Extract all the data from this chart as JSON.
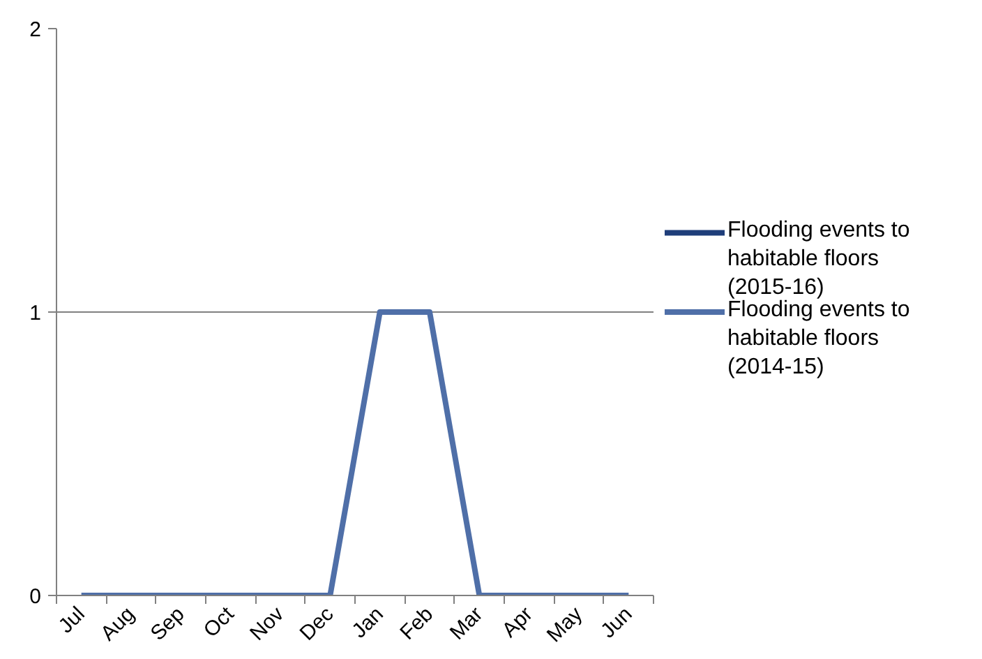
{
  "chart_data": {
    "type": "line",
    "categories": [
      "Jul",
      "Aug",
      "Sep",
      "Oct",
      "Nov",
      "Dec",
      "Jan",
      "Feb",
      "Mar",
      "Apr",
      "May",
      "Jun"
    ],
    "series": [
      {
        "name": "Flooding events to habitable floors (2015-16)",
        "color": "#1f3e7a",
        "values": [
          null,
          null,
          null,
          null,
          null,
          null,
          null,
          null,
          null,
          null,
          null,
          null
        ]
      },
      {
        "name": "Flooding events to habitable floors (2014-15)",
        "color": "#4f6fa8",
        "values": [
          0,
          0,
          0,
          0,
          0,
          0,
          1,
          1,
          0,
          0,
          0,
          0
        ]
      }
    ],
    "ylim": [
      0,
      2
    ],
    "yticks": [
      0,
      1,
      2
    ],
    "grid": "y",
    "legend": "right"
  }
}
